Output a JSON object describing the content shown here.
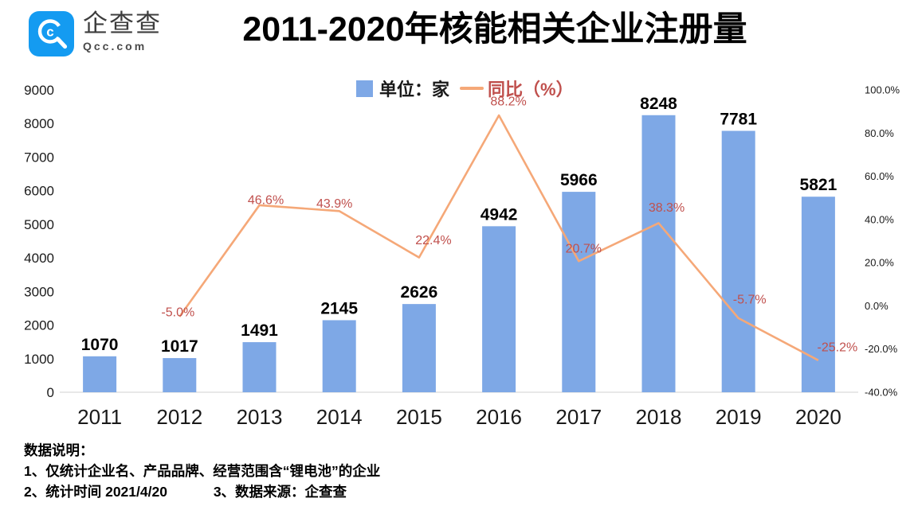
{
  "header": {
    "brand_cn": "企查查",
    "brand_en": "Qcc.com",
    "logo_color": "#149bf1",
    "title": "2011-2020年核能相关企业注册量"
  },
  "legend": {
    "bar_label": "单位：家",
    "line_label": "同比（%）"
  },
  "chart_data": {
    "type": "bar",
    "title": "2011-2020年核能相关企业注册量",
    "xlabel": "",
    "ylabel": "",
    "grid": false,
    "legend_position": "top",
    "categories": [
      "2011",
      "2012",
      "2013",
      "2014",
      "2015",
      "2016",
      "2017",
      "2018",
      "2019",
      "2020"
    ],
    "series": [
      {
        "name": "单位：家",
        "type": "bar",
        "axis": "left",
        "color": "#7ea8e6",
        "values": [
          1070,
          1017,
          1491,
          2145,
          2626,
          4942,
          5966,
          8248,
          7781,
          5821
        ],
        "labels": [
          "1070",
          "1017",
          "1491",
          "2145",
          "2626",
          "4942",
          "5966",
          "8248",
          "7781",
          "5821"
        ]
      },
      {
        "name": "同比（%）",
        "type": "line",
        "axis": "right",
        "color": "#f5a878",
        "label_color": "#c0504d",
        "values": [
          null,
          -5.0,
          46.6,
          43.9,
          22.4,
          88.2,
          20.7,
          38.3,
          -5.7,
          -25.2
        ],
        "labels": [
          "",
          "-5.0%",
          "46.6%",
          "43.9%",
          "22.4%",
          "88.2%",
          "20.7%",
          "38.3%",
          "-5.7%",
          "-25.2%"
        ]
      }
    ],
    "left_axis": {
      "min": 0,
      "max": 9000,
      "ticks": [
        "0",
        "1000",
        "2000",
        "3000",
        "4000",
        "5000",
        "6000",
        "7000",
        "8000",
        "9000"
      ]
    },
    "right_axis": {
      "min": -40,
      "max": 100,
      "ticks": [
        "-40.0%",
        "-20.0%",
        "0.0%",
        "20.0%",
        "40.0%",
        "60.0%",
        "80.0%",
        "100.0%"
      ]
    },
    "axis_line_color": "#d9d9d9",
    "bar_value_color": "#000000",
    "tick_color": "#1a1a1a"
  },
  "notes": {
    "heading": "数据说明：",
    "line1": "1、仅统计企业名、产品品牌、经营范围含“锂电池”的企业",
    "line2": "2、统计时间 2021/4/20",
    "line3": "3、数据来源：企查查"
  }
}
